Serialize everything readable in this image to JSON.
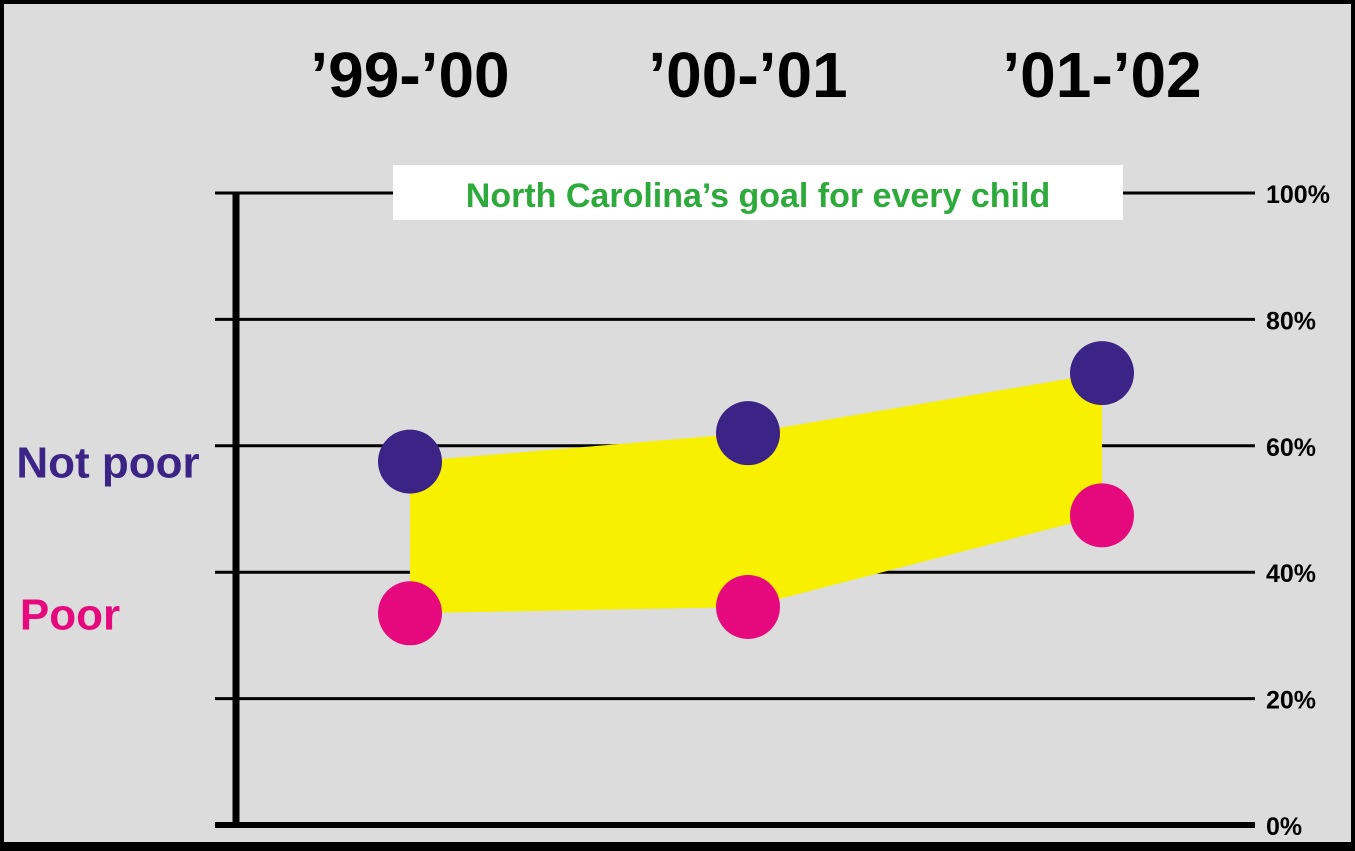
{
  "colors": {
    "background": "#dcdcdc",
    "frame": "#000000",
    "gap_fill": "#f7f000",
    "not_poor": "#3b2486",
    "poor": "#e5097d",
    "goal_text": "#2eaa3c",
    "goal_box": "#ffffff",
    "axis": "#000000"
  },
  "chart_data": {
    "type": "scatter",
    "categories": [
      "’99-’00",
      "’00-’01",
      "’01-’02"
    ],
    "ylim": [
      0,
      100
    ],
    "y_ticks": [
      0,
      20,
      40,
      60,
      80,
      100
    ],
    "y_tick_labels": [
      "0%",
      "20%",
      "40%",
      "60%",
      "80%",
      "100%"
    ],
    "grid": true,
    "series": [
      {
        "name": "Not poor",
        "color": "#3b2486",
        "values": [
          57.5,
          62,
          71.5
        ]
      },
      {
        "name": "Poor",
        "color": "#e5097d",
        "values": [
          33.5,
          34.5,
          49
        ]
      }
    ],
    "shaded_gap": {
      "between": [
        "Not poor",
        "Poor"
      ],
      "color": "#f7f000"
    },
    "annotation": {
      "text": "North Carolina’s goal for every child",
      "y": 100
    }
  }
}
